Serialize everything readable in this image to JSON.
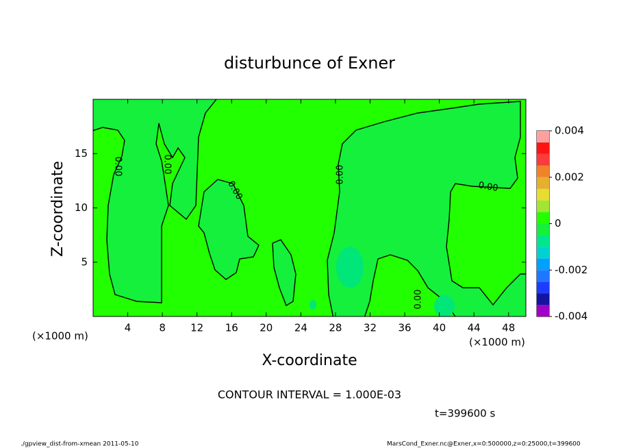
{
  "chart_data": {
    "type": "contour",
    "title": "disturbunce of Exner",
    "x_label": "X-coordinate",
    "y_label": "Z-coordinate",
    "x_unit_left": "(×1000 m)",
    "x_unit_right": "(×1000 m)",
    "xlim": [
      0,
      50
    ],
    "xticks": [
      4,
      8,
      12,
      16,
      20,
      24,
      28,
      32,
      36,
      40,
      44,
      48
    ],
    "ylim": [
      0,
      20
    ],
    "yticks": [
      5,
      10,
      15
    ],
    "clim": [
      -0.004,
      0.004
    ],
    "cticks": [
      -0.004,
      -0.002,
      0,
      0.002,
      0.004
    ],
    "colorbar_colors": [
      "#a000c8",
      "#1414a0",
      "#1e3cff",
      "#1e78ff",
      "#00a0ff",
      "#00d2d2",
      "#00e68c",
      "#14f03c",
      "#22ff00",
      "#a0e632",
      "#e6dc32",
      "#e6af2d",
      "#f08228",
      "#fa3c3c",
      "#ff1414",
      "#ffa0a0"
    ],
    "contour_labels": [
      "0.00",
      "0.00",
      "0.00",
      "0.00",
      "0.00",
      "0.00"
    ],
    "contour_interval": "CONTOUR INTERVAL = 1.000E-03",
    "time_label": "t=399600 s",
    "footer_left": "./gpview_dist-from-xmean  2011-05-10",
    "footer_right": "MarsCond_Exner.nc@Exner,x=0:500000,z=0:25000,t=399600"
  }
}
